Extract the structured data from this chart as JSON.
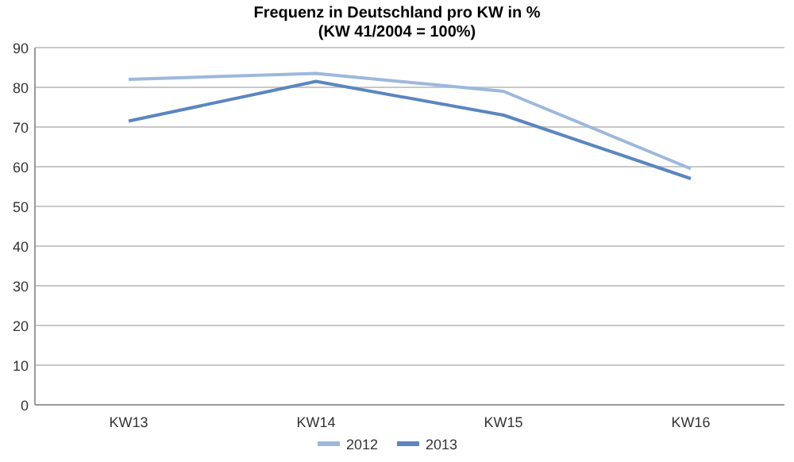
{
  "chart_data": {
    "type": "line",
    "title": "Frequenz in Deutschland pro KW in %",
    "subtitle": "(KW 41/2004 = 100%)",
    "categories": [
      "KW13",
      "KW14",
      "KW15",
      "KW16"
    ],
    "series": [
      {
        "name": "2012",
        "color": "#9db8dc",
        "values": [
          82,
          83.5,
          79,
          59.5
        ]
      },
      {
        "name": "2013",
        "color": "#5b86bf",
        "values": [
          71.5,
          81.5,
          73,
          57
        ]
      }
    ],
    "ylim": [
      0,
      90
    ],
    "yticks": [
      0,
      10,
      20,
      30,
      40,
      50,
      60,
      70,
      80,
      90
    ],
    "grid": "y",
    "legend": "bottom",
    "marker": "none",
    "line_style": "solid"
  }
}
